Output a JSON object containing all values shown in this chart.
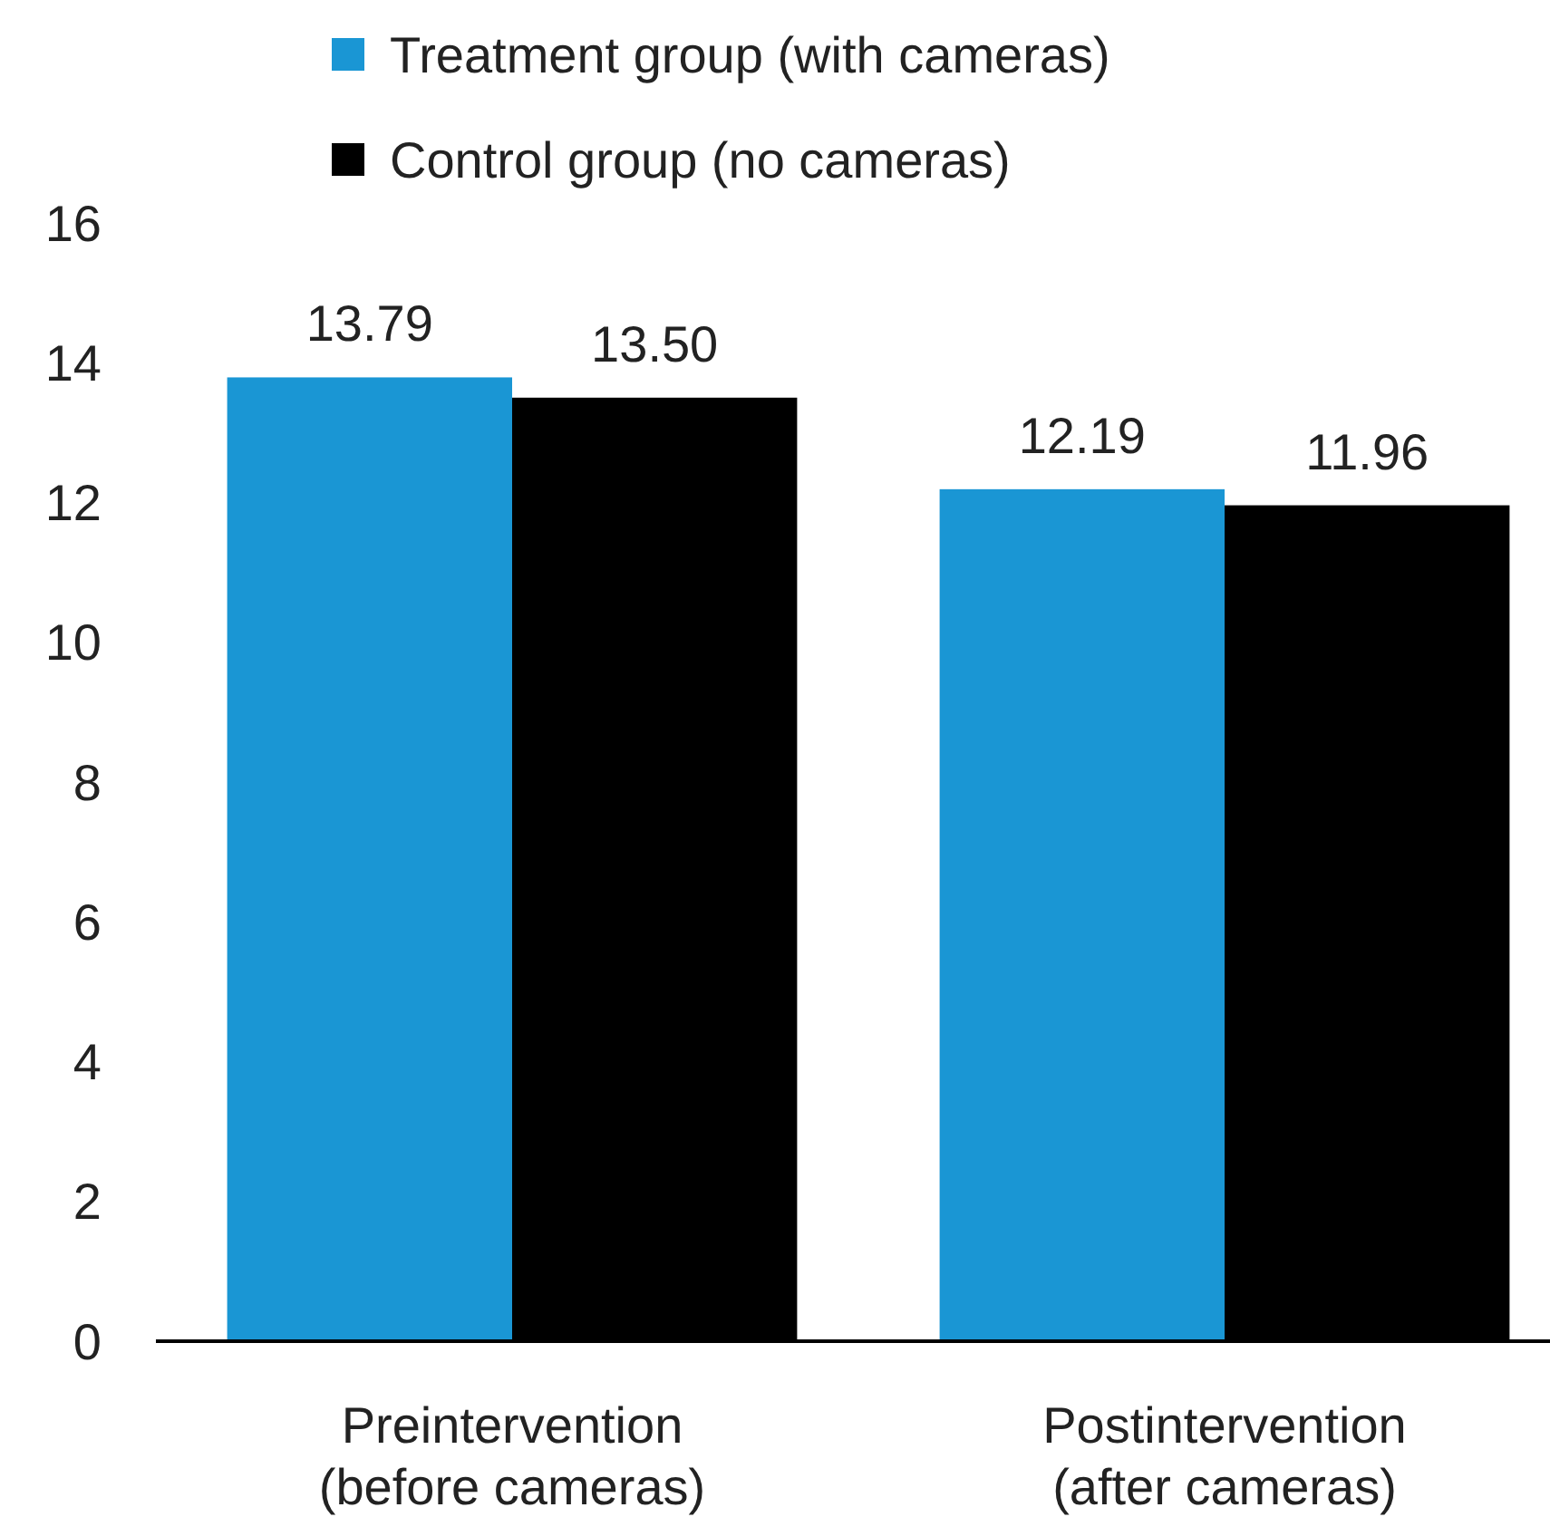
{
  "chart_data": {
    "type": "bar",
    "categories": [
      "Preintervention (before cameras)",
      "Postintervention (after cameras)"
    ],
    "series": [
      {
        "name": "Treatment group (with cameras)",
        "color": "#1a96d4",
        "values": [
          13.79,
          12.19
        ],
        "value_labels": [
          "13.79",
          "12.19"
        ]
      },
      {
        "name": "Control group (no cameras)",
        "color": "#000000",
        "values": [
          13.5,
          11.96
        ],
        "value_labels": [
          "13.50",
          "11.96"
        ]
      }
    ],
    "ylim": [
      0,
      16
    ],
    "yticks": [
      0,
      2,
      4,
      6,
      8,
      10,
      12,
      14,
      16
    ],
    "grid": false,
    "legend": "top left"
  }
}
